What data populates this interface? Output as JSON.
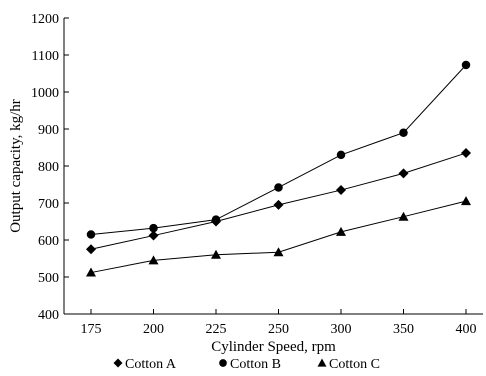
{
  "chart_data": {
    "type": "line",
    "title": "",
    "xlabel": "Cylinder Speed, rpm",
    "ylabel": "Output capacity, kg/hr",
    "categories": [
      "175",
      "200",
      "225",
      "250",
      "300",
      "350",
      "400"
    ],
    "ylim": [
      400,
      1200
    ],
    "yticks": [
      "400",
      "500",
      "600",
      "700",
      "800",
      "900",
      "1000",
      "1100",
      "1200"
    ],
    "grid": false,
    "legend_position": "bottom",
    "series": [
      {
        "name": "Cotton A",
        "marker": "diamond",
        "values": [
          575,
          612,
          650,
          695,
          735,
          780,
          835
        ]
      },
      {
        "name": "Cotton B",
        "marker": "circle",
        "values": [
          615,
          632,
          655,
          742,
          830,
          890,
          1073
        ]
      },
      {
        "name": "Cotton C",
        "marker": "triangle",
        "values": [
          512,
          545,
          560,
          567,
          622,
          663,
          705
        ]
      }
    ],
    "colors": {
      "line": "#000000",
      "marker": "#000000"
    }
  }
}
